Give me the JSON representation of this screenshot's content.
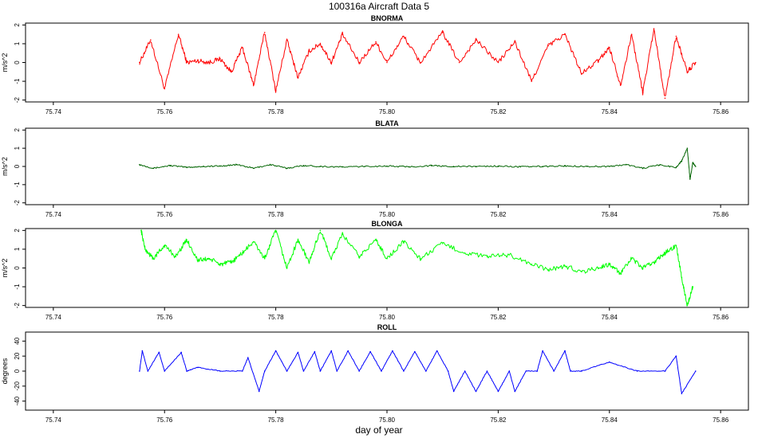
{
  "figure": {
    "title": "100316a   Aircraft Data 5",
    "xlabel": "day of year"
  },
  "chart_data": [
    {
      "type": "line",
      "title": "BNORMA",
      "ylabel": "m/s^2",
      "color": "#ff0000",
      "xlim": [
        75.735,
        75.865
      ],
      "ylim": [
        -2.1,
        2.1
      ],
      "x_ticks": [
        75.74,
        75.76,
        75.78,
        75.8,
        75.82,
        75.84,
        75.86
      ],
      "x_tick_labels": [
        "75.74",
        "75.76",
        "75.78",
        "75.80",
        "75.82",
        "75.84",
        "75.86"
      ],
      "y_ticks": [
        -2,
        -1,
        0,
        1,
        2
      ],
      "y_tick_labels": [
        "-2",
        "-1",
        "0",
        "1",
        "2"
      ],
      "x": [
        75.7555,
        75.7575,
        75.76,
        75.7625,
        75.764,
        75.766,
        75.768,
        75.77,
        75.772,
        75.774,
        75.776,
        75.778,
        75.78,
        75.782,
        75.784,
        75.786,
        75.788,
        75.79,
        75.792,
        75.795,
        75.798,
        75.8,
        75.803,
        75.806,
        75.81,
        75.813,
        75.816,
        75.82,
        75.823,
        75.826,
        75.829,
        75.832,
        75.835,
        75.838,
        75.84,
        75.842,
        75.844,
        75.846,
        75.848,
        75.85,
        75.852,
        75.854,
        75.8555
      ],
      "y": [
        0.0,
        1.2,
        -1.4,
        1.5,
        0.0,
        0.1,
        0.0,
        0.2,
        -0.5,
        0.8,
        -1.2,
        1.6,
        -1.5,
        1.2,
        -0.8,
        0.6,
        1.0,
        0.0,
        1.5,
        0.0,
        1.1,
        0.0,
        1.4,
        0.0,
        1.6,
        0.0,
        1.2,
        0.0,
        1.1,
        -1.0,
        0.9,
        1.5,
        -0.6,
        0.1,
        0.8,
        -1.2,
        1.5,
        -1.6,
        1.8,
        -1.9,
        1.4,
        -0.5,
        0.0
      ]
    },
    {
      "type": "line",
      "title": "BLATA",
      "ylabel": "m/s^2",
      "color": "#006400",
      "xlim": [
        75.735,
        75.865
      ],
      "ylim": [
        -2.1,
        2.1
      ],
      "x_ticks": [
        75.74,
        75.76,
        75.78,
        75.8,
        75.82,
        75.84,
        75.86
      ],
      "x_tick_labels": [
        "75.74",
        "75.76",
        "75.78",
        "75.80",
        "75.82",
        "75.84",
        "75.86"
      ],
      "y_ticks": [
        -2,
        -1,
        0,
        1,
        2
      ],
      "y_tick_labels": [
        "-2",
        "-1",
        "0",
        "1",
        "2"
      ],
      "x": [
        75.7555,
        75.758,
        75.761,
        75.764,
        75.767,
        75.77,
        75.773,
        75.776,
        75.779,
        75.782,
        75.785,
        75.788,
        75.792,
        75.796,
        75.8,
        75.804,
        75.808,
        75.812,
        75.816,
        75.82,
        75.824,
        75.828,
        75.832,
        75.836,
        75.84,
        75.843,
        75.846,
        75.849,
        75.852,
        75.853,
        75.854,
        75.8545,
        75.855,
        75.8555
      ],
      "y": [
        0.1,
        -0.1,
        0.05,
        -0.05,
        0.0,
        0.02,
        0.1,
        -0.1,
        0.1,
        -0.1,
        0.05,
        0.0,
        -0.03,
        0.0,
        0.02,
        -0.02,
        0.04,
        0.0,
        0.0,
        0.02,
        -0.02,
        0.0,
        0.03,
        0.0,
        0.0,
        0.1,
        -0.1,
        0.08,
        -0.05,
        0.3,
        1.0,
        -0.7,
        0.2,
        0.0
      ]
    },
    {
      "type": "line",
      "title": "BLONGA",
      "ylabel": "m/s^2",
      "color": "#00ff00",
      "xlim": [
        75.735,
        75.865
      ],
      "ylim": [
        -2.1,
        2.1
      ],
      "x_ticks": [
        75.74,
        75.76,
        75.78,
        75.8,
        75.82,
        75.84,
        75.86
      ],
      "x_tick_labels": [
        "75.74",
        "75.76",
        "75.78",
        "75.80",
        "75.82",
        "75.84",
        "75.86"
      ],
      "y_ticks": [
        -2,
        -1,
        0,
        1,
        2
      ],
      "y_tick_labels": [
        "-2",
        "-1",
        "0",
        "1",
        "2"
      ],
      "x": [
        75.7558,
        75.7565,
        75.758,
        75.76,
        75.762,
        75.764,
        75.766,
        75.768,
        75.77,
        75.772,
        75.774,
        75.776,
        75.778,
        75.78,
        75.782,
        75.784,
        75.786,
        75.788,
        75.79,
        75.792,
        75.795,
        75.798,
        75.8,
        75.803,
        75.806,
        75.81,
        75.814,
        75.818,
        75.822,
        75.826,
        75.829,
        75.832,
        75.835,
        75.838,
        75.84,
        75.842,
        75.844,
        75.846,
        75.848,
        75.85,
        75.852,
        75.853,
        75.854,
        75.855
      ],
      "y": [
        2.0,
        1.0,
        0.5,
        1.2,
        0.6,
        1.5,
        0.4,
        0.5,
        0.2,
        0.3,
        0.8,
        1.4,
        0.5,
        2.0,
        0.0,
        1.5,
        0.3,
        2.0,
        0.5,
        1.8,
        0.6,
        1.5,
        0.5,
        1.4,
        0.5,
        1.3,
        0.8,
        0.6,
        0.7,
        0.2,
        -0.1,
        0.1,
        -0.2,
        0.0,
        0.2,
        -0.3,
        0.5,
        0.0,
        0.3,
        0.8,
        1.2,
        -0.5,
        -2.0,
        -1.0
      ]
    },
    {
      "type": "line",
      "title": "ROLL",
      "ylabel": "degrees",
      "color": "#0000ff",
      "xlim": [
        75.735,
        75.865
      ],
      "ylim": [
        -52,
        52
      ],
      "x_ticks": [
        75.74,
        75.76,
        75.78,
        75.8,
        75.82,
        75.84,
        75.86
      ],
      "x_tick_labels": [
        "75.74",
        "75.76",
        "75.78",
        "75.80",
        "75.82",
        "75.84",
        "75.86"
      ],
      "y_ticks": [
        -40,
        -20,
        0,
        20,
        40
      ],
      "y_tick_labels": [
        "-40",
        "-20",
        "0",
        "20",
        "40"
      ],
      "x": [
        75.7555,
        75.756,
        75.757,
        75.759,
        75.76,
        75.763,
        75.764,
        75.766,
        75.77,
        75.774,
        75.775,
        75.777,
        75.778,
        75.78,
        75.782,
        75.784,
        75.785,
        75.787,
        75.788,
        75.79,
        75.791,
        75.793,
        75.795,
        75.797,
        75.799,
        75.801,
        75.803,
        75.805,
        75.807,
        75.809,
        75.811,
        75.812,
        75.814,
        75.816,
        75.818,
        75.82,
        75.822,
        75.823,
        75.825,
        75.827,
        75.828,
        75.83,
        75.832,
        75.833,
        75.835,
        75.84,
        75.845,
        75.85,
        75.852,
        75.853,
        75.8555
      ],
      "y": [
        0,
        27,
        0,
        25,
        0,
        25,
        0,
        5,
        0,
        0,
        18,
        -27,
        0,
        27,
        0,
        25,
        0,
        26,
        0,
        27,
        0,
        27,
        0,
        26,
        0,
        27,
        0,
        26,
        0,
        27,
        0,
        -27,
        0,
        -27,
        0,
        -27,
        0,
        -27,
        0,
        0,
        27,
        0,
        27,
        0,
        0,
        12,
        0,
        0,
        20,
        -30,
        0
      ]
    }
  ]
}
